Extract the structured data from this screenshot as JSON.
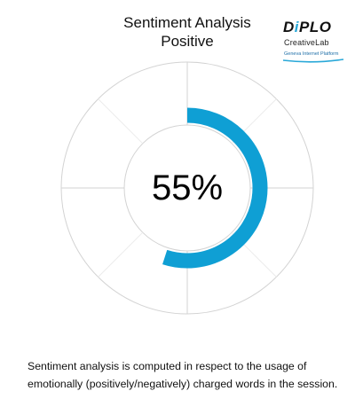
{
  "chart_data": {
    "type": "radial-progress",
    "title": "Sentiment Analysis",
    "subtitle": "Positive",
    "value": 55,
    "max": 100,
    "value_label": "55%",
    "colors": {
      "progress": "#0f9fd4",
      "grid": "#d3d3d3",
      "text": "#000000"
    },
    "grid": true
  },
  "logo": {
    "name_prefix": "D",
    "name_accent": "i",
    "name_suffix": "PLO",
    "sub": "CreativeLab",
    "platform": "Geneva Internet Platform",
    "swoosh_color": "#29a8d8"
  },
  "footnote": "Sentiment analysis is computed in respect to the usage of emotionally (positively/negatively) charged words in the session."
}
